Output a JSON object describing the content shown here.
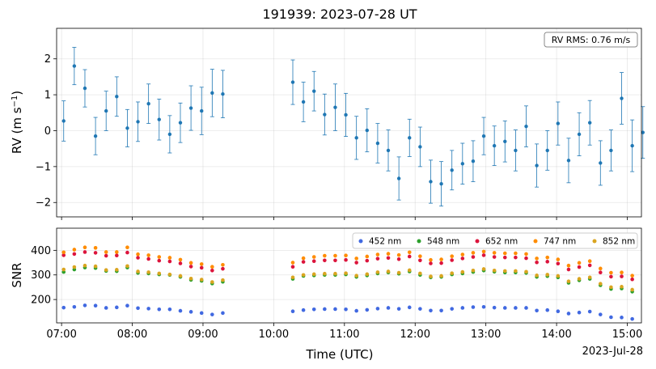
{
  "figure": {
    "title": "191939: 2023-07-28 UT",
    "xlabel": "Time (UTC)",
    "date_label": "2023-Jul-28",
    "rms_annotation": "RV RMS: 0.76 m/s"
  },
  "chart_data": [
    {
      "type": "scatter",
      "title": "191939: 2023-07-28 UT",
      "xlabel": "",
      "ylabel": "RV (m s⁻¹)",
      "x_unit": "hours UTC",
      "xlim": [
        6.93,
        15.2
      ],
      "ylim": [
        -2.4,
        2.85
      ],
      "yticks": [
        -2,
        -1,
        0,
        1,
        2
      ],
      "xticks": [
        7,
        8,
        9,
        10,
        11,
        12,
        13,
        14,
        15
      ],
      "grid": true,
      "color": "#1f77b4",
      "annotation": "RV RMS: 0.76 m/s",
      "series": [
        {
          "points": [
            {
              "x": 7.03,
              "y": 0.27,
              "err": 0.56
            },
            {
              "x": 7.18,
              "y": 1.8,
              "err": 0.52
            },
            {
              "x": 7.33,
              "y": 1.18,
              "err": 0.52
            },
            {
              "x": 7.48,
              "y": -0.15,
              "err": 0.52
            },
            {
              "x": 7.63,
              "y": 0.55,
              "err": 0.55
            },
            {
              "x": 7.78,
              "y": 0.95,
              "err": 0.55
            },
            {
              "x": 7.93,
              "y": 0.07,
              "err": 0.52
            },
            {
              "x": 8.08,
              "y": 0.25,
              "err": 0.55
            },
            {
              "x": 8.23,
              "y": 0.75,
              "err": 0.55
            },
            {
              "x": 8.38,
              "y": 0.31,
              "err": 0.57
            },
            {
              "x": 8.53,
              "y": -0.1,
              "err": 0.52
            },
            {
              "x": 8.68,
              "y": 0.22,
              "err": 0.55
            },
            {
              "x": 8.83,
              "y": 0.63,
              "err": 0.62
            },
            {
              "x": 8.98,
              "y": 0.55,
              "err": 0.66
            },
            {
              "x": 9.13,
              "y": 1.05,
              "err": 0.66
            },
            {
              "x": 9.28,
              "y": 1.02,
              "err": 0.66
            },
            {
              "x": 10.27,
              "y": 1.35,
              "err": 0.62
            },
            {
              "x": 10.42,
              "y": 0.8,
              "err": 0.55
            },
            {
              "x": 10.57,
              "y": 1.1,
              "err": 0.55
            },
            {
              "x": 10.72,
              "y": 0.45,
              "err": 0.57
            },
            {
              "x": 10.87,
              "y": 0.65,
              "err": 0.65
            },
            {
              "x": 11.02,
              "y": 0.44,
              "err": 0.6
            },
            {
              "x": 11.17,
              "y": -0.2,
              "err": 0.6
            },
            {
              "x": 11.32,
              "y": 0.01,
              "err": 0.6
            },
            {
              "x": 11.47,
              "y": -0.35,
              "err": 0.55
            },
            {
              "x": 11.62,
              "y": -0.55,
              "err": 0.57
            },
            {
              "x": 11.77,
              "y": -1.33,
              "err": 0.6
            },
            {
              "x": 11.92,
              "y": -0.2,
              "err": 0.52
            },
            {
              "x": 12.07,
              "y": -0.45,
              "err": 0.55
            },
            {
              "x": 12.22,
              "y": -1.42,
              "err": 0.6
            },
            {
              "x": 12.37,
              "y": -1.48,
              "err": 0.62
            },
            {
              "x": 12.52,
              "y": -1.1,
              "err": 0.55
            },
            {
              "x": 12.67,
              "y": -0.92,
              "err": 0.57
            },
            {
              "x": 12.82,
              "y": -0.85,
              "err": 0.57
            },
            {
              "x": 12.97,
              "y": -0.15,
              "err": 0.52
            },
            {
              "x": 13.12,
              "y": -0.42,
              "err": 0.55
            },
            {
              "x": 13.27,
              "y": -0.3,
              "err": 0.57
            },
            {
              "x": 13.42,
              "y": -0.55,
              "err": 0.57
            },
            {
              "x": 13.57,
              "y": 0.12,
              "err": 0.57
            },
            {
              "x": 13.72,
              "y": -0.97,
              "err": 0.6
            },
            {
              "x": 13.87,
              "y": -0.55,
              "err": 0.55
            },
            {
              "x": 14.02,
              "y": 0.2,
              "err": 0.6
            },
            {
              "x": 14.17,
              "y": -0.83,
              "err": 0.62
            },
            {
              "x": 14.32,
              "y": -0.1,
              "err": 0.6
            },
            {
              "x": 14.47,
              "y": 0.22,
              "err": 0.62
            },
            {
              "x": 14.62,
              "y": -0.9,
              "err": 0.62
            },
            {
              "x": 14.77,
              "y": -0.55,
              "err": 0.57
            },
            {
              "x": 14.92,
              "y": 0.9,
              "err": 0.72
            },
            {
              "x": 15.07,
              "y": -0.42,
              "err": 0.72
            },
            {
              "x": 15.22,
              "y": -0.05,
              "err": 0.72
            }
          ]
        }
      ]
    },
    {
      "type": "scatter",
      "title": "",
      "xlabel": "Time (UTC)",
      "ylabel": "SNR",
      "x_unit": "hours UTC",
      "xlim": [
        6.93,
        15.2
      ],
      "ylim": [
        105,
        490
      ],
      "yticks": [
        200,
        300,
        400
      ],
      "xticks": [
        7,
        8,
        9,
        10,
        11,
        12,
        13,
        14,
        15
      ],
      "xtick_labels": [
        "07:00",
        "08:00",
        "09:00",
        "10:00",
        "11:00",
        "12:00",
        "13:00",
        "14:00",
        "15:00"
      ],
      "grid": true,
      "legend": "top-right",
      "x": [
        7.03,
        7.18,
        7.33,
        7.48,
        7.63,
        7.78,
        7.93,
        8.08,
        8.23,
        8.38,
        8.53,
        8.68,
        8.83,
        8.98,
        9.13,
        9.28,
        10.27,
        10.42,
        10.57,
        10.72,
        10.87,
        11.02,
        11.17,
        11.32,
        11.47,
        11.62,
        11.77,
        11.92,
        12.07,
        12.22,
        12.37,
        12.52,
        12.67,
        12.82,
        12.97,
        13.12,
        13.27,
        13.42,
        13.57,
        13.72,
        13.87,
        14.02,
        14.17,
        14.32,
        14.47,
        14.62,
        14.77,
        14.92,
        15.07,
        15.22
      ],
      "series": [
        {
          "name": "452 nm",
          "color": "#4169e1",
          "values": [
            167,
            170,
            176,
            175,
            166,
            168,
            175,
            165,
            163,
            160,
            160,
            154,
            150,
            145,
            139,
            145,
            152,
            157,
            160,
            161,
            161,
            160,
            154,
            158,
            163,
            166,
            162,
            168,
            162,
            155,
            155,
            162,
            166,
            169,
            170,
            167,
            166,
            166,
            166,
            155,
            157,
            152,
            143,
            147,
            151,
            139,
            128,
            127,
            121,
            110
          ]
        },
        {
          "name": "548 nm",
          "color": "#2ca02c",
          "values": [
            312,
            322,
            330,
            328,
            316,
            315,
            330,
            308,
            306,
            302,
            300,
            292,
            280,
            276,
            265,
            272,
            284,
            296,
            298,
            300,
            300,
            302,
            292,
            298,
            306,
            310,
            305,
            314,
            300,
            290,
            292,
            302,
            306,
            312,
            318,
            313,
            310,
            310,
            308,
            292,
            295,
            290,
            268,
            278,
            284,
            258,
            243,
            245,
            232,
            220
          ]
        },
        {
          "name": "652 nm",
          "color": "#dc143c",
          "values": [
            380,
            385,
            393,
            390,
            378,
            379,
            391,
            370,
            365,
            358,
            355,
            347,
            334,
            329,
            318,
            325,
            333,
            353,
            356,
            359,
            359,
            361,
            350,
            358,
            366,
            369,
            364,
            375,
            359,
            347,
            348,
            360,
            367,
            373,
            380,
            373,
            371,
            371,
            368,
            351,
            354,
            346,
            322,
            332,
            339,
            310,
            293,
            294,
            282,
            268
          ]
        },
        {
          "name": "747 nm",
          "color": "#ff8c00",
          "values": [
            392,
            403,
            412,
            410,
            393,
            393,
            412,
            384,
            380,
            373,
            370,
            362,
            349,
            344,
            333,
            341,
            350,
            368,
            373,
            378,
            378,
            379,
            367,
            375,
            383,
            386,
            381,
            392,
            376,
            361,
            363,
            376,
            383,
            390,
            395,
            390,
            388,
            388,
            385,
            367,
            371,
            363,
            338,
            349,
            356,
            326,
            309,
            310,
            297,
            283
          ]
        },
        {
          "name": "852 nm",
          "color": "#daa520",
          "values": [
            322,
            332,
            338,
            335,
            320,
            321,
            336,
            314,
            311,
            306,
            302,
            296,
            285,
            281,
            271,
            279,
            290,
            300,
            303,
            305,
            305,
            307,
            297,
            303,
            311,
            314,
            309,
            319,
            306,
            294,
            296,
            307,
            312,
            318,
            324,
            318,
            316,
            316,
            313,
            298,
            301,
            296,
            274,
            284,
            290,
            264,
            250,
            252,
            240,
            232
          ]
        }
      ]
    }
  ]
}
